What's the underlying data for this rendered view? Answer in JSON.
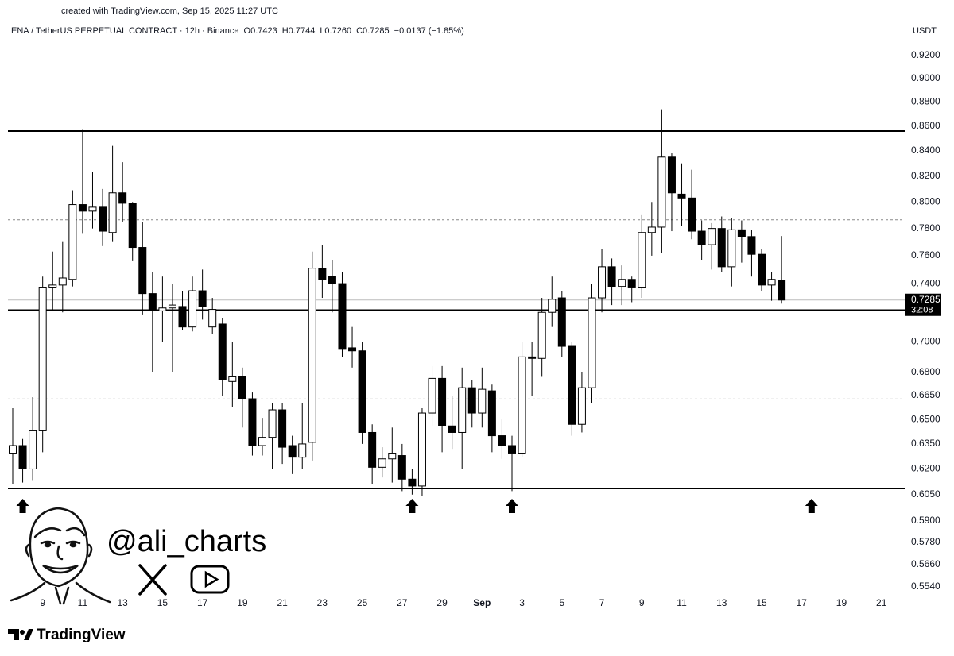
{
  "credit": "created with TradingView.com, Sep 15, 2025 11:27 UTC",
  "watermark": {
    "handle": "@ali_charts"
  },
  "footer": {
    "brand": "TradingView"
  },
  "chart_data": {
    "type": "candlestick",
    "title": "ENA / TetherUS PERPETUAL CONTRACT · 12h · Binance",
    "stats": [
      "O0.7423",
      "H0.7744",
      "L0.7260",
      "C0.7285",
      "−0.0137 (−1.85%)"
    ],
    "y_unit": "USDT",
    "categories": [
      null,
      null,
      null,
      "9",
      null,
      null,
      null,
      "11",
      null,
      null,
      null,
      "13",
      null,
      null,
      null,
      "15",
      null,
      null,
      null,
      "17",
      null,
      null,
      null,
      "19",
      null,
      null,
      null,
      "21",
      null,
      null,
      null,
      "23",
      null,
      null,
      null,
      "25",
      null,
      null,
      null,
      "27",
      null,
      null,
      null,
      "29",
      null,
      null,
      null,
      "Sep",
      null,
      null,
      null,
      "3",
      null,
      null,
      null,
      "5",
      null,
      null,
      null,
      "7",
      null,
      null,
      null,
      "9",
      null,
      null,
      null,
      "11",
      null,
      null,
      null,
      "13",
      null,
      null,
      null,
      "15",
      null,
      null,
      null,
      "17",
      null,
      null,
      null,
      "19",
      null,
      null,
      null,
      "21",
      null,
      null
    ],
    "open": [
      0.629,
      0.634,
      0.62,
      0.643,
      0.737,
      0.739,
      0.743,
      0.798,
      0.793,
      0.796,
      0.777,
      0.807,
      0.799,
      0.766,
      0.733,
      0.721,
      0.723,
      0.724,
      0.71,
      0.735,
      0.71,
      0.712,
      0.674,
      0.677,
      0.663,
      0.634,
      0.639,
      0.656,
      0.634,
      0.627,
      0.636,
      0.751,
      0.745,
      0.74,
      0.696,
      0.694,
      0.642,
      0.621,
      0.626,
      0.628,
      0.614,
      0.61,
      0.654,
      0.676,
      0.646,
      0.642,
      0.67,
      0.654,
      0.668,
      0.64,
      0.634,
      0.629,
      0.69,
      0.689,
      0.72,
      0.73,
      0.697,
      0.647,
      0.67,
      0.73,
      0.752,
      0.738,
      0.743,
      0.737,
      0.777,
      0.781,
      0.835,
      0.806,
      0.803,
      0.778,
      0.768,
      0.78,
      0.752,
      0.779,
      0.774,
      0.761,
      0.739,
      0.7423,
      null,
      null,
      null,
      null,
      null,
      null,
      null,
      null,
      null,
      null,
      null,
      null
    ],
    "high": [
      0.657,
      0.638,
      0.664,
      0.745,
      0.763,
      0.77,
      0.809,
      0.857,
      0.823,
      0.81,
      0.844,
      0.831,
      0.8,
      0.785,
      0.748,
      0.745,
      0.74,
      0.735,
      0.745,
      0.75,
      0.73,
      0.716,
      0.7,
      0.683,
      0.667,
      0.651,
      0.66,
      0.66,
      0.64,
      0.66,
      0.763,
      0.768,
      0.757,
      0.748,
      0.71,
      0.7,
      0.647,
      0.633,
      0.645,
      0.635,
      0.62,
      0.657,
      0.684,
      0.684,
      0.665,
      0.683,
      0.675,
      0.683,
      0.672,
      0.65,
      0.64,
      0.7,
      0.7,
      0.73,
      0.745,
      0.735,
      0.7,
      0.68,
      0.74,
      0.765,
      0.758,
      0.753,
      0.745,
      0.79,
      0.8,
      0.874,
      0.838,
      0.83,
      0.825,
      0.786,
      0.784,
      0.789,
      0.788,
      0.786,
      0.779,
      0.765,
      0.748,
      0.7744,
      null,
      null,
      null,
      null,
      null,
      null,
      null,
      null,
      null,
      null,
      null,
      null
    ],
    "low": [
      0.611,
      0.612,
      0.613,
      0.63,
      0.721,
      0.72,
      0.738,
      0.776,
      0.78,
      0.767,
      0.77,
      0.785,
      0.756,
      0.718,
      0.68,
      0.7,
      0.68,
      0.708,
      0.707,
      0.715,
      0.705,
      0.665,
      0.658,
      0.645,
      0.628,
      0.628,
      0.62,
      0.623,
      0.617,
      0.62,
      0.625,
      0.73,
      0.72,
      0.69,
      0.683,
      0.635,
      0.611,
      0.615,
      0.612,
      0.607,
      0.605,
      0.604,
      0.646,
      0.63,
      0.632,
      0.62,
      0.645,
      0.645,
      0.63,
      0.626,
      0.607,
      0.627,
      0.665,
      0.677,
      0.71,
      0.69,
      0.64,
      0.642,
      0.66,
      0.72,
      0.725,
      0.725,
      0.727,
      0.73,
      0.76,
      0.762,
      0.778,
      0.782,
      0.772,
      0.757,
      0.75,
      0.748,
      0.738,
      0.755,
      0.745,
      0.735,
      0.728,
      0.726,
      null,
      null,
      null,
      null,
      null,
      null,
      null,
      null,
      null,
      null,
      null,
      null
    ],
    "close": [
      0.634,
      0.62,
      0.643,
      0.737,
      0.739,
      0.744,
      0.798,
      0.793,
      0.796,
      0.778,
      0.807,
      0.799,
      0.766,
      0.733,
      0.721,
      0.723,
      0.725,
      0.71,
      0.735,
      0.724,
      0.722,
      0.675,
      0.677,
      0.663,
      0.634,
      0.639,
      0.656,
      0.633,
      0.627,
      0.635,
      0.751,
      0.743,
      0.74,
      0.695,
      0.694,
      0.642,
      0.621,
      0.626,
      0.629,
      0.614,
      0.61,
      0.654,
      0.676,
      0.646,
      0.642,
      0.67,
      0.654,
      0.669,
      0.64,
      0.634,
      0.629,
      0.69,
      0.689,
      0.72,
      0.729,
      0.697,
      0.647,
      0.67,
      0.73,
      0.752,
      0.738,
      0.743,
      0.737,
      0.777,
      0.781,
      0.835,
      0.807,
      0.803,
      0.778,
      0.768,
      0.78,
      0.752,
      0.779,
      0.774,
      0.761,
      0.739,
      0.743,
      0.7285,
      null,
      null,
      null,
      null,
      null,
      null,
      null,
      null,
      null,
      null,
      null,
      null
    ],
    "up_color": "#ffffff",
    "down_color": "#000000",
    "wick_color": "#000000",
    "log_scale": true,
    "ylim": [
      0.5411,
      0.9411
    ],
    "yticks": [
      {
        "value": 0.92,
        "label": "0.9200"
      },
      {
        "value": 0.9,
        "label": "0.9000"
      },
      {
        "value": 0.88,
        "label": "0.8800"
      },
      {
        "value": 0.86,
        "label": "0.8600"
      },
      {
        "value": 0.84,
        "label": "0.8400"
      },
      {
        "value": 0.82,
        "label": "0.8200"
      },
      {
        "value": 0.8,
        "label": "0.8000"
      },
      {
        "value": 0.78,
        "label": "0.7800"
      },
      {
        "value": 0.76,
        "label": "0.7600"
      },
      {
        "value": 0.74,
        "label": "0.7400"
      },
      {
        "value": 0.7,
        "label": "0.7000"
      },
      {
        "value": 0.68,
        "label": "0.6800"
      },
      {
        "value": 0.665,
        "label": "0.6650"
      },
      {
        "value": 0.65,
        "label": "0.6500"
      },
      {
        "value": 0.635,
        "label": "0.6350"
      },
      {
        "value": 0.62,
        "label": "0.6200"
      },
      {
        "value": 0.605,
        "label": "0.6050"
      },
      {
        "value": 0.59,
        "label": "0.5900"
      },
      {
        "value": 0.578,
        "label": "0.5780"
      },
      {
        "value": 0.566,
        "label": "0.5660"
      },
      {
        "value": 0.554,
        "label": "0.5540"
      }
    ],
    "grid": false,
    "levels": [
      {
        "value": 0.856,
        "style": "solid"
      },
      {
        "value": 0.7865,
        "style": "dashed"
      },
      {
        "value": 0.7215,
        "style": "solid"
      },
      {
        "value": 0.6628,
        "style": "dashed"
      },
      {
        "value": 0.6086,
        "style": "solid"
      }
    ],
    "last_price": {
      "value": 0.7285,
      "label": "0.7285"
    },
    "countdown": "32:08"
  }
}
